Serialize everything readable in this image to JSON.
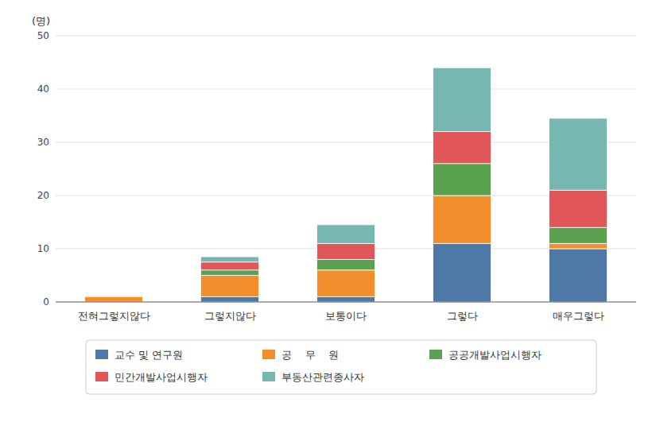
{
  "chart_data": {
    "type": "bar",
    "stacked": true,
    "categories": [
      "전혀그렇지않다",
      "그렇지않다",
      "보통이다",
      "그렇다",
      "매우그렇다"
    ],
    "series": [
      {
        "name": "교수 및 연구원",
        "values": [
          0,
          1,
          1,
          11,
          10
        ]
      },
      {
        "name": "공    무    원",
        "values": [
          1,
          4,
          5,
          9,
          1
        ]
      },
      {
        "name": "공공개발사업시행자",
        "values": [
          0,
          1,
          2,
          6,
          3
        ]
      },
      {
        "name": "민간개발사업시행자",
        "values": [
          0,
          1.5,
          3,
          6,
          7
        ]
      },
      {
        "name": "부동산관련종사자",
        "values": [
          0,
          1,
          3.5,
          12,
          13.5
        ]
      }
    ],
    "ylabel": "(명)",
    "ylim": [
      0,
      50
    ],
    "yticks": [
      0,
      10,
      20,
      30,
      40,
      50
    ],
    "grid": true,
    "legend": "bottom"
  }
}
